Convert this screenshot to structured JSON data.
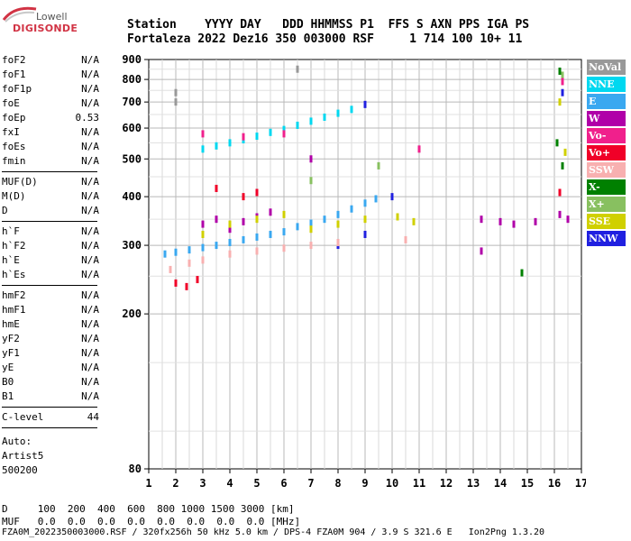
{
  "logo": {
    "brand_small": "Lowell",
    "brand_main": "DIGISONDE"
  },
  "header": {
    "row1": "Station    YYYY DAY   DDD HHMMSS P1  FFS S AXN PPS IGA PS",
    "row2": "Fortaleza 2022 Dez16 350 003000 RSF     1 714 100 10+ 11"
  },
  "params": {
    "group1": [
      {
        "label": "foF2",
        "value": "N/A"
      },
      {
        "label": "foF1",
        "value": "N/A"
      },
      {
        "label": "foF1p",
        "value": "N/A"
      },
      {
        "label": "foE",
        "value": "N/A"
      },
      {
        "label": "foEp",
        "value": "0.53"
      },
      {
        "label": "fxI",
        "value": "N/A"
      },
      {
        "label": "foEs",
        "value": "N/A"
      },
      {
        "label": "fmin",
        "value": "N/A"
      }
    ],
    "group2": [
      {
        "label": "MUF(D)",
        "value": "N/A"
      },
      {
        "label": "M(D)",
        "value": "N/A"
      },
      {
        "label": "D",
        "value": "N/A"
      }
    ],
    "group3": [
      {
        "label": "h`F",
        "value": "N/A"
      },
      {
        "label": "h`F2",
        "value": "N/A"
      },
      {
        "label": "h`E",
        "value": "N/A"
      },
      {
        "label": "h`Es",
        "value": "N/A"
      }
    ],
    "group4": [
      {
        "label": "hmF2",
        "value": "N/A"
      },
      {
        "label": "hmF1",
        "value": "N/A"
      },
      {
        "label": "hmE",
        "value": "N/A"
      },
      {
        "label": "yF2",
        "value": "N/A"
      },
      {
        "label": "yF1",
        "value": "N/A"
      },
      {
        "label": "yE",
        "value": "N/A"
      },
      {
        "label": "B0",
        "value": "N/A"
      },
      {
        "label": "B1",
        "value": "N/A"
      }
    ],
    "group5": [
      {
        "label": "C-level",
        "value": "44"
      }
    ],
    "auto": [
      "Auto:",
      "Artist5",
      "500200"
    ]
  },
  "legend": [
    {
      "label": "NoVal",
      "color": "#999999"
    },
    {
      "label": "NNE",
      "color": "#00d8f0"
    },
    {
      "label": "E",
      "color": "#3aa8f0"
    },
    {
      "label": "W",
      "color": "#b000a8"
    },
    {
      "label": "Vo-",
      "color": "#f0208c"
    },
    {
      "label": "Vo+",
      "color": "#f00028"
    },
    {
      "label": "SSW",
      "color": "#f8b0b0"
    },
    {
      "label": "X-",
      "color": "#008000"
    },
    {
      "label": "X+",
      "color": "#88c060"
    },
    {
      "label": "SSE",
      "color": "#d0d000"
    },
    {
      "label": "NNW",
      "color": "#2020e0"
    }
  ],
  "bottom": {
    "d_row": "D     100  200  400  600  800 1000 1500 3000 [km]",
    "muf_row": "MUF   0.0  0.0  0.0  0.0  0.0  0.0  0.0  0.0 [MHz]",
    "footer": "FZA0M_2022350003000.RSF / 320fx256h 50 kHz 5.0 km / DPS-4 FZA0M 904 / 3.9 S 321.6 E   Ion2Png 1.3.20"
  },
  "chart_data": {
    "type": "scatter",
    "title": "",
    "xlabel": "",
    "ylabel": "",
    "xlim": [
      1,
      17
    ],
    "ylim": [
      80,
      900
    ],
    "y_scale": "log",
    "grid": true,
    "x_ticks": [
      "1",
      "2",
      "3",
      "4",
      "5",
      "6",
      "7",
      "8",
      "9",
      "10",
      "11",
      "12",
      "13",
      "14",
      "15",
      "16",
      "17"
    ],
    "y_ticks": [
      "80",
      "200",
      "300",
      "400",
      "500",
      "600",
      "700",
      "800",
      "900"
    ],
    "traces": [
      {
        "name": "E",
        "color": "#3aa8f0",
        "points": [
          [
            1.6,
            285
          ],
          [
            2.0,
            288
          ],
          [
            2.5,
            292
          ],
          [
            3.0,
            296
          ],
          [
            3.5,
            300
          ],
          [
            4.0,
            305
          ],
          [
            4.5,
            310
          ],
          [
            5.0,
            315
          ],
          [
            5.5,
            320
          ],
          [
            6.0,
            325
          ],
          [
            6.5,
            335
          ],
          [
            7.0,
            342
          ],
          [
            7.5,
            350
          ],
          [
            8.0,
            360
          ],
          [
            8.5,
            372
          ],
          [
            9.0,
            385
          ],
          [
            9.4,
            395
          ]
        ]
      },
      {
        "name": "NNE",
        "color": "#00d8f0",
        "points": [
          [
            3.0,
            530
          ],
          [
            3.5,
            540
          ],
          [
            4.0,
            550
          ],
          [
            4.5,
            560
          ],
          [
            5.0,
            572
          ],
          [
            5.5,
            585
          ],
          [
            6.0,
            595
          ],
          [
            6.5,
            610
          ],
          [
            7.0,
            625
          ],
          [
            7.5,
            640
          ],
          [
            8.0,
            655
          ],
          [
            8.5,
            670
          ]
        ]
      },
      {
        "name": "NNW",
        "color": "#2020e0",
        "points": [
          [
            9.0,
            690
          ],
          [
            10.0,
            400
          ],
          [
            8.0,
            300
          ],
          [
            9.0,
            320
          ],
          [
            16.3,
            740
          ]
        ]
      },
      {
        "name": "W",
        "color": "#b000a8",
        "points": [
          [
            3.0,
            340
          ],
          [
            3.5,
            350
          ],
          [
            4.0,
            330
          ],
          [
            4.5,
            345
          ],
          [
            5.0,
            355
          ],
          [
            5.5,
            365
          ],
          [
            13.3,
            350
          ],
          [
            14.0,
            345
          ],
          [
            14.5,
            340
          ],
          [
            15.3,
            345
          ],
          [
            16.2,
            360
          ],
          [
            16.5,
            350
          ],
          [
            13.3,
            290
          ],
          [
            7.0,
            500
          ]
        ]
      },
      {
        "name": "Vo+",
        "color": "#f00028",
        "points": [
          [
            2.0,
            240
          ],
          [
            2.4,
            235
          ],
          [
            2.8,
            245
          ],
          [
            3.5,
            420
          ],
          [
            4.5,
            400
          ],
          [
            5.0,
            410
          ],
          [
            16.2,
            410
          ]
        ]
      },
      {
        "name": "SSW",
        "color": "#f8b0b0",
        "points": [
          [
            1.8,
            260
          ],
          [
            2.5,
            270
          ],
          [
            3.0,
            275
          ],
          [
            4.0,
            285
          ],
          [
            5.0,
            290
          ],
          [
            6.0,
            295
          ],
          [
            7.0,
            300
          ],
          [
            8.0,
            305
          ],
          [
            10.5,
            310
          ]
        ]
      },
      {
        "name": "X-",
        "color": "#008000",
        "points": [
          [
            16.2,
            840
          ],
          [
            16.1,
            550
          ],
          [
            16.3,
            480
          ],
          [
            14.8,
            255
          ]
        ]
      },
      {
        "name": "X+",
        "color": "#88c060",
        "points": [
          [
            16.3,
            820
          ],
          [
            7.0,
            440
          ],
          [
            9.5,
            480
          ]
        ]
      },
      {
        "name": "SSE",
        "color": "#d0d000",
        "points": [
          [
            3.0,
            320
          ],
          [
            4.0,
            340
          ],
          [
            5.0,
            350
          ],
          [
            6.0,
            360
          ],
          [
            7.0,
            330
          ],
          [
            8.0,
            340
          ],
          [
            9.0,
            350
          ],
          [
            10.2,
            355
          ],
          [
            10.8,
            345
          ],
          [
            16.2,
            700
          ],
          [
            16.4,
            520
          ]
        ]
      },
      {
        "name": "Vo-",
        "color": "#f0208c",
        "points": [
          [
            3.0,
            580
          ],
          [
            4.5,
            570
          ],
          [
            6.0,
            580
          ],
          [
            11.0,
            530
          ],
          [
            16.3,
            790
          ]
        ]
      },
      {
        "name": "NoVal",
        "color": "#999999",
        "points": [
          [
            6.5,
            850
          ],
          [
            2.0,
            740
          ],
          [
            2.0,
            700
          ]
        ]
      }
    ]
  }
}
